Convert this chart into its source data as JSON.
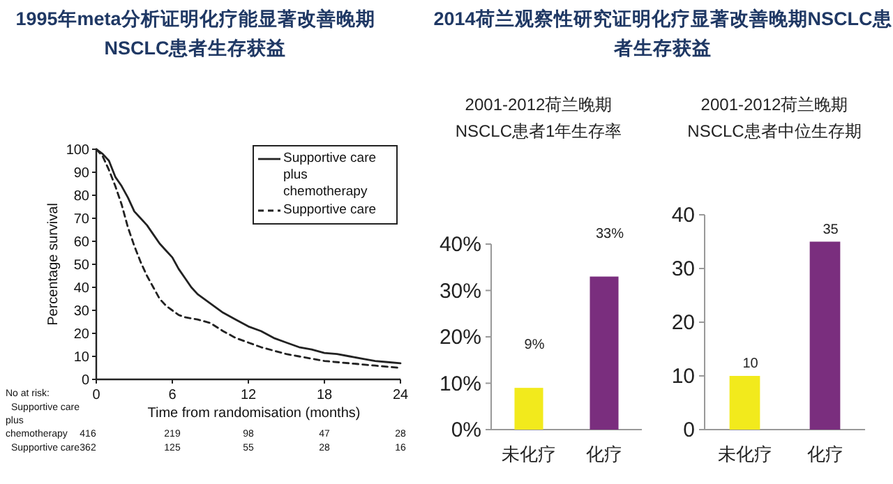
{
  "chart_data": [
    {
      "type": "line",
      "title": "1995年meta分析证明化疗能显著改善晚期NSCLC患者生存获益",
      "xlabel": "Time from randomisation (months)",
      "ylabel": "Percentage survival",
      "xlim": [
        0,
        24
      ],
      "ylim": [
        0,
        100
      ],
      "xticks": [
        0,
        6,
        12,
        18,
        24
      ],
      "yticks": [
        0,
        10,
        20,
        30,
        40,
        50,
        60,
        70,
        80,
        90,
        100
      ],
      "grid": false,
      "marker": "none",
      "legend": "top right",
      "series": [
        {
          "name": "Supportive care plus chemotherapy",
          "color": "#222222",
          "line_style": "solid",
          "x": [
            0,
            0.5,
            1,
            1.5,
            2,
            2.5,
            3,
            3.5,
            4,
            4.5,
            5,
            5.5,
            6,
            6.5,
            7,
            7.5,
            8,
            9,
            10,
            11,
            12,
            13,
            14,
            15,
            16,
            17,
            18,
            19,
            20,
            21,
            22,
            23,
            24
          ],
          "values": [
            100,
            98,
            95,
            88,
            84,
            79,
            73,
            70,
            67,
            63,
            59,
            56,
            53,
            48,
            44,
            40,
            37,
            33,
            29,
            26,
            23,
            21,
            18,
            16,
            14,
            13,
            11.5,
            11,
            10,
            9,
            8,
            7.5,
            7
          ]
        },
        {
          "name": "Supportive care",
          "color": "#222222",
          "line_style": "dashed",
          "x": [
            0,
            0.5,
            1,
            1.5,
            2,
            2.5,
            3,
            3.5,
            4,
            4.5,
            5,
            5.5,
            6,
            6.5,
            7,
            8,
            9,
            10,
            11,
            12,
            13,
            14,
            15,
            16,
            17,
            18,
            19,
            20,
            21,
            22,
            23,
            24
          ],
          "values": [
            100,
            97,
            91,
            84,
            76,
            66,
            58,
            51,
            45,
            40,
            35,
            32,
            30,
            28,
            27,
            26,
            24.5,
            21,
            18,
            16,
            14,
            12.5,
            11,
            10,
            9,
            8,
            7.5,
            7,
            6.5,
            6,
            5.5,
            5
          ]
        }
      ],
      "annotations": [
        "No at risk:",
        "Supportive care plus chemotherapy",
        "416",
        "219",
        "98",
        "47",
        "28",
        "Supportive care",
        "362",
        "125",
        "55",
        "28",
        "16"
      ]
    },
    {
      "type": "bar",
      "title": "2014荷兰观察性研究证明化疗显著改善晚期NSCLC患者生存获益",
      "subtitle": "2001-2012荷兰晚期NSCLC患者1年生存率",
      "categories": [
        "未化疗",
        "化疗"
      ],
      "values": [
        9,
        33
      ],
      "colors": [
        "#f2ea1c",
        "#7a2e7e"
      ],
      "ylim": [
        0,
        40
      ],
      "yticks": [
        {
          "value": 0,
          "label": "0%"
        },
        {
          "value": 10,
          "label": "10%"
        },
        {
          "value": 20,
          "label": "20%"
        },
        {
          "value": 30,
          "label": "30%"
        },
        {
          "value": 40,
          "label": "40%"
        }
      ],
      "value_labels": [
        "9%",
        "33%"
      ],
      "grid": false
    },
    {
      "type": "bar",
      "title": "2001-2012荷兰晚期NSCLC患者中位生存期",
      "categories": [
        "未化疗",
        "化疗"
      ],
      "values": [
        10,
        35
      ],
      "colors": [
        "#f2ea1c",
        "#7a2e7e"
      ],
      "ylim": [
        0,
        40
      ],
      "yticks": [
        0,
        10,
        20,
        30,
        40
      ],
      "data_labels": true,
      "grid": false
    }
  ]
}
